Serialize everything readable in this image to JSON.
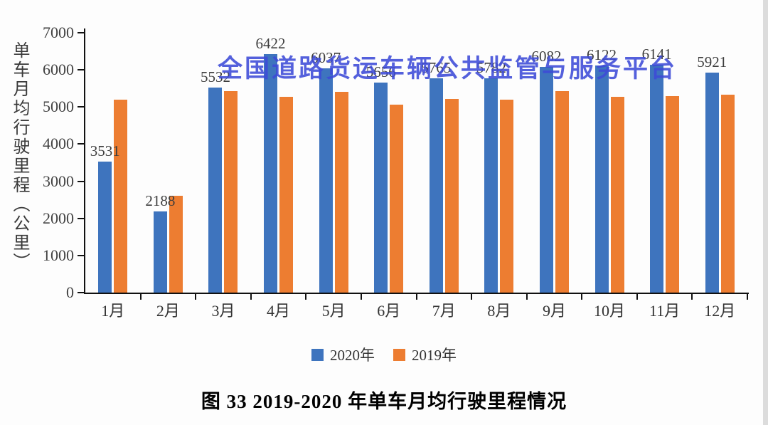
{
  "watermark": {
    "text": "全国道路货运车辆公共监管与服务平台",
    "color": "#3D4BD8"
  },
  "caption": "图 33  2019-2020 年单车月均行驶里程情况",
  "y_axis": {
    "title": "单车月均行驶里程（公里）"
  },
  "legend": {
    "items": [
      {
        "label": "2020年",
        "color": "#3E74BE"
      },
      {
        "label": "2019年",
        "color": "#ED7D31"
      }
    ]
  },
  "colors": {
    "series_2020": "#3E74BE",
    "series_2019": "#ED7D31",
    "watermark_blue": "#3D4BD8",
    "axis": "#111111",
    "tick_text": "#414141"
  },
  "chart_data": {
    "type": "bar",
    "title": "",
    "categories": [
      "1月",
      "2月",
      "3月",
      "4月",
      "5月",
      "6月",
      "7月",
      "8月",
      "9月",
      "10月",
      "11月",
      "12月"
    ],
    "series": [
      {
        "name": "2020年",
        "color": "#3E74BE",
        "values": [
          3531,
          2188,
          5532,
          6422,
          6037,
          5656,
          5765,
          5782,
          6082,
          6122,
          6141,
          5921
        ],
        "data_labels": true
      },
      {
        "name": "2019年",
        "color": "#ED7D31",
        "values": [
          5200,
          2610,
          5420,
          5270,
          5410,
          5060,
          5210,
          5190,
          5420,
          5270,
          5290,
          5330
        ],
        "data_labels": false
      }
    ],
    "xlabel": "",
    "ylabel": "单车月均行驶里程（公里）",
    "ylim": [
      0,
      7000
    ],
    "yticks": [
      0,
      1000,
      2000,
      3000,
      4000,
      5000,
      6000,
      7000
    ],
    "grid": false,
    "legend_position": "bottom"
  }
}
